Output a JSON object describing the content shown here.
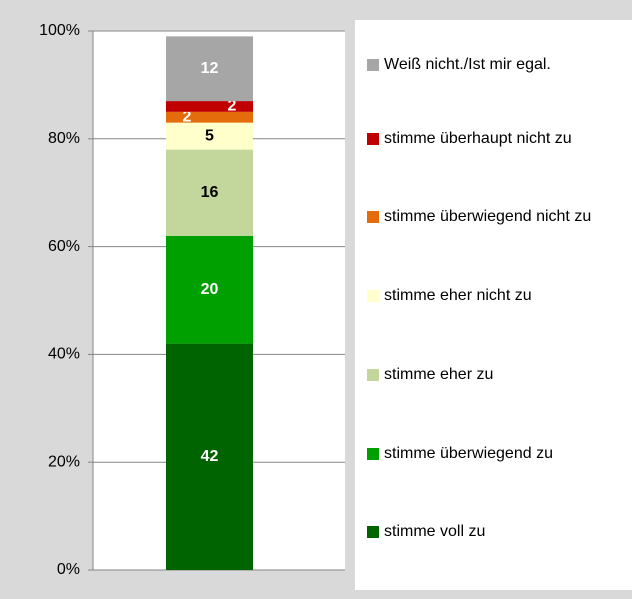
{
  "chart_data": {
    "type": "stacked-bar",
    "categories": [
      null
    ],
    "series": [
      {
        "name": "stimme voll zu",
        "color": "#006400",
        "values": [
          42
        ]
      },
      {
        "name": "stimme überwiegend zu",
        "color": "#00a000",
        "values": [
          20
        ]
      },
      {
        "name": "stimme eher zu",
        "color": "#c3d69b",
        "values": [
          16
        ]
      },
      {
        "name": "stimme eher nicht zu",
        "color": "#ffffcc",
        "values": [
          5
        ]
      },
      {
        "name": "stimme überwiegend nicht zu",
        "color": "#e46c0a",
        "values": [
          2
        ]
      },
      {
        "name": "stimme überhaupt nicht zu",
        "color": "#c00000",
        "values": [
          2
        ]
      },
      {
        "name": "Weiß nicht./Ist mir egal.",
        "color": "#a6a6a6",
        "values": [
          12
        ]
      }
    ],
    "ylim": [
      0,
      100
    ],
    "yticks": [
      {
        "value": 0,
        "label": "0%"
      },
      {
        "value": 20,
        "label": "20%"
      },
      {
        "value": 40,
        "label": "40%"
      },
      {
        "value": 60,
        "label": "60%"
      },
      {
        "value": 80,
        "label": "80%"
      },
      {
        "value": 100,
        "label": "100%"
      }
    ],
    "grid": true,
    "legend": "right"
  }
}
